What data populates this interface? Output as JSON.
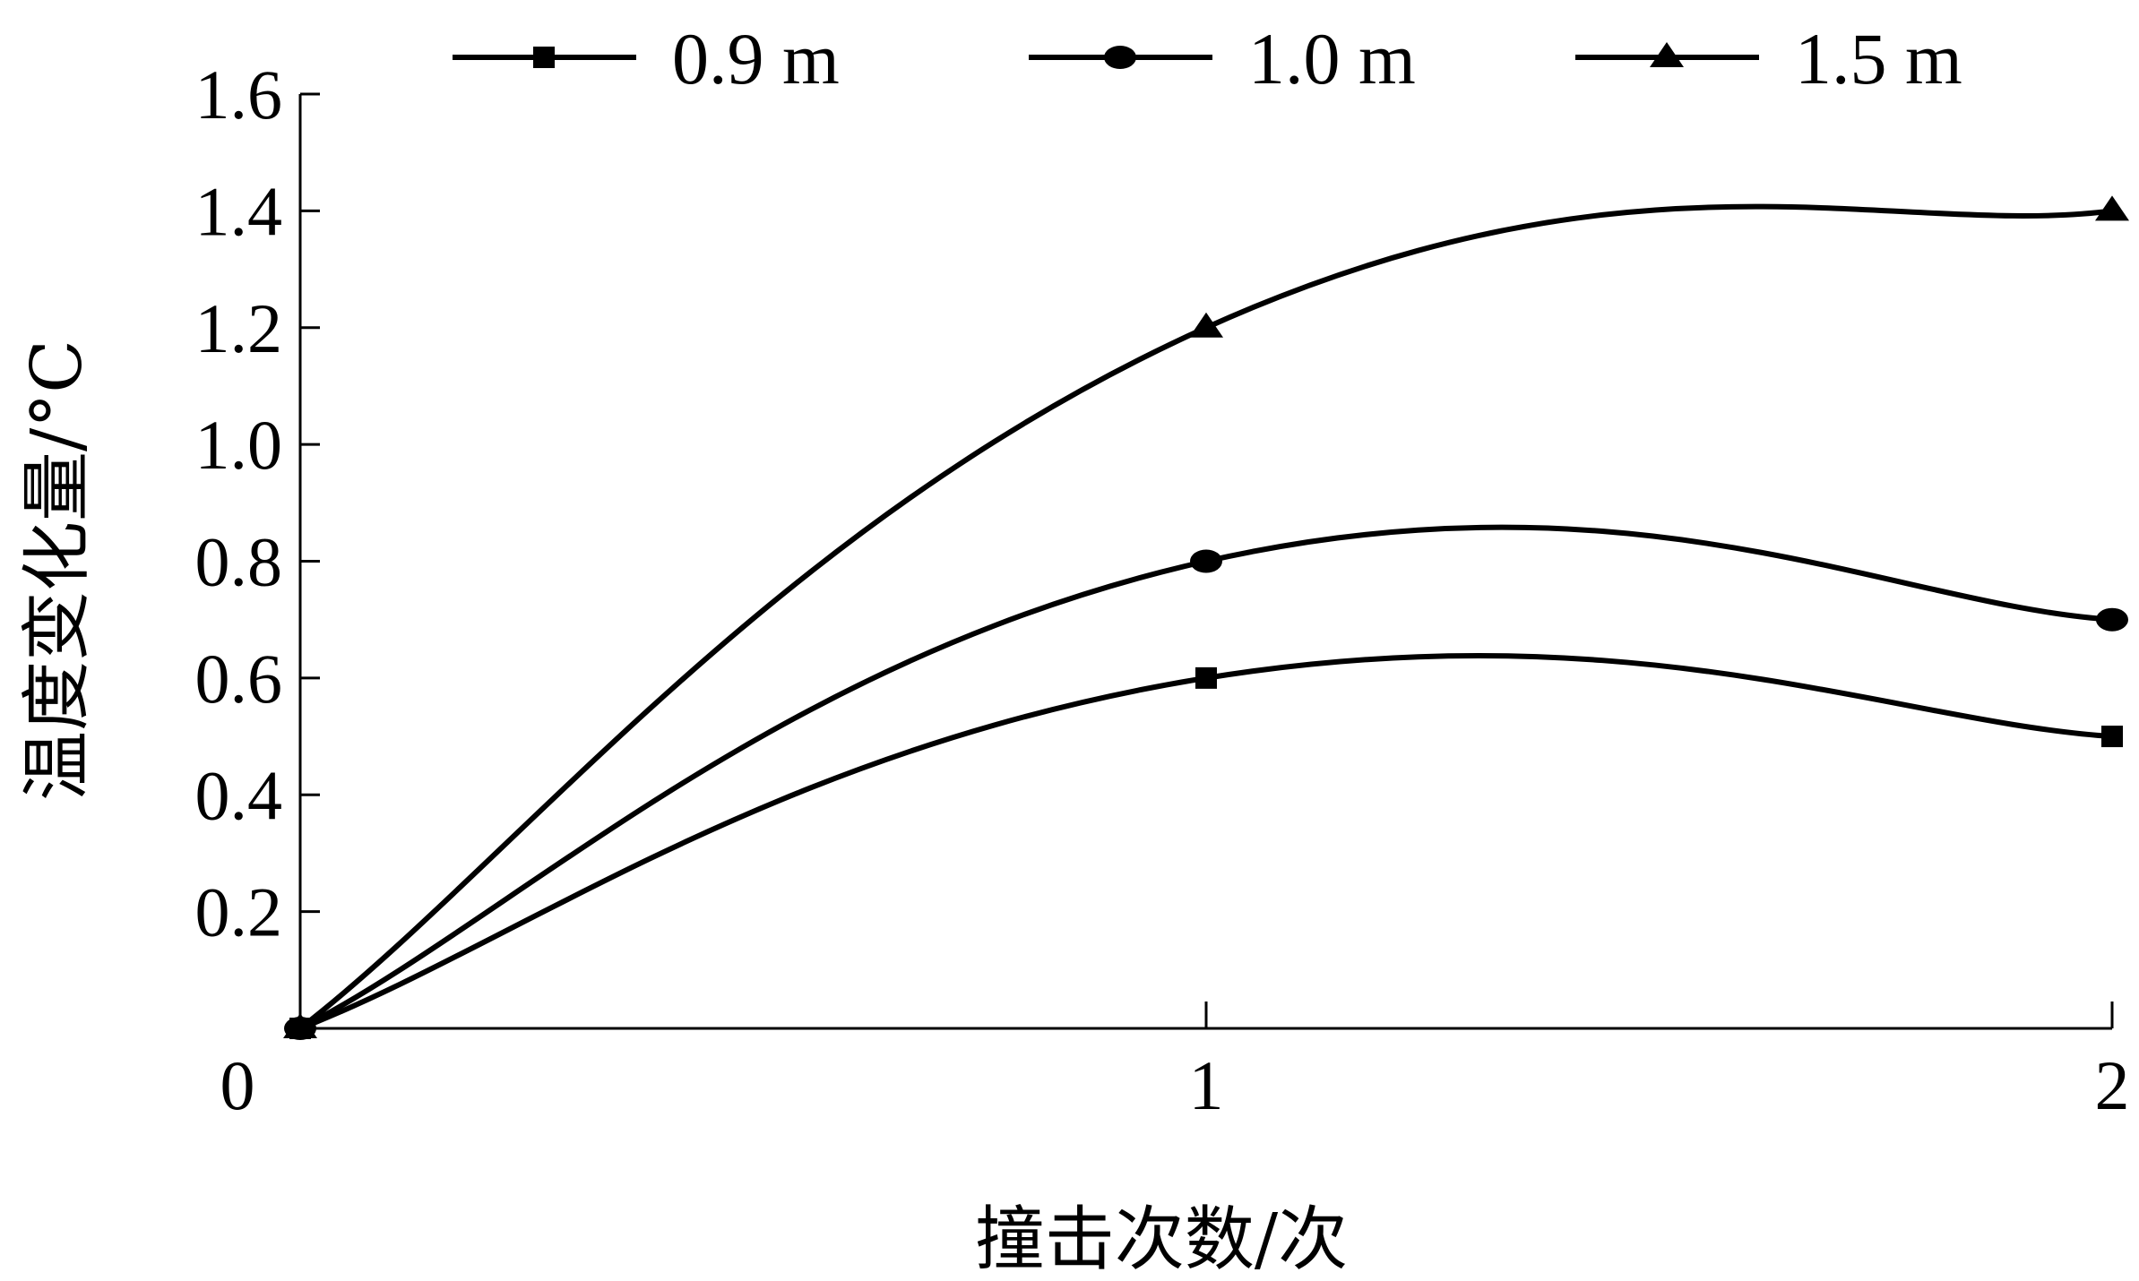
{
  "chart_data": {
    "type": "line",
    "title": "",
    "xlabel": "撞击次数/次",
    "ylabel": "温度变化量/°C",
    "x": [
      0,
      1,
      2
    ],
    "x_ticks": [
      "0",
      "1",
      "2"
    ],
    "xlim": [
      0,
      2
    ],
    "ylim": [
      0,
      1.6
    ],
    "y_ticks": [
      "0.2",
      "0.4",
      "0.6",
      "0.8",
      "1.0",
      "1.2",
      "1.4",
      "1.6"
    ],
    "grid": false,
    "legend_position": "top",
    "smooth": true,
    "series": [
      {
        "name": "0.9 m",
        "marker": "square",
        "values": [
          0,
          0.6,
          0.5
        ]
      },
      {
        "name": "1.0 m",
        "marker": "circle",
        "values": [
          0,
          0.8,
          0.7
        ]
      },
      {
        "name": "1.5 m",
        "marker": "triangle",
        "values": [
          0,
          1.2,
          1.4
        ]
      }
    ],
    "colors": {
      "line": "#000000",
      "background": "#ffffff"
    }
  }
}
